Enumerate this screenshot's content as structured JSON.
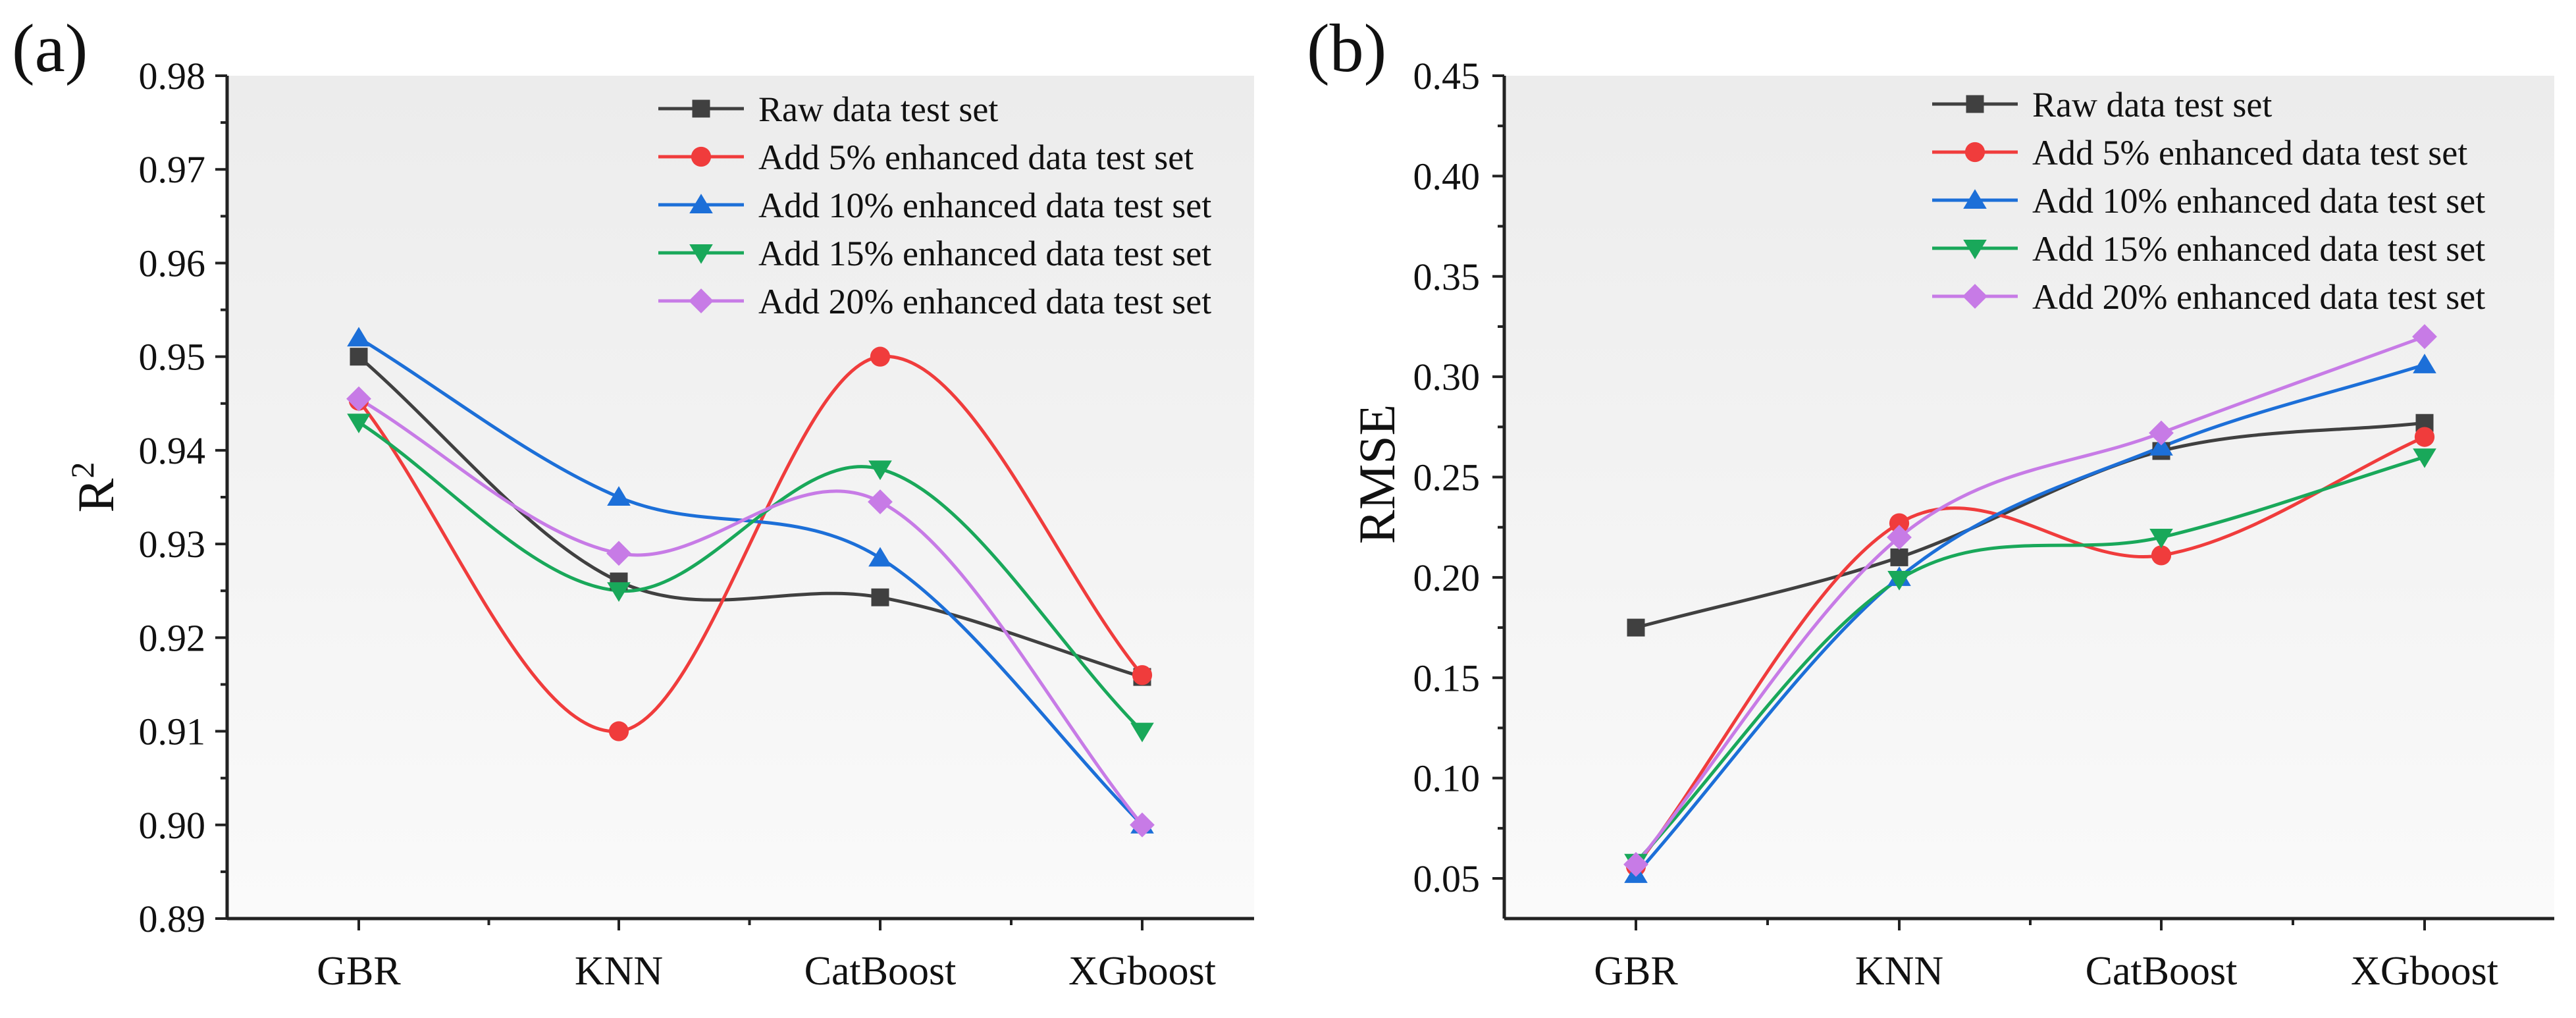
{
  "chart_data": [
    {
      "type": "line",
      "panel_label": "(a)",
      "title": "",
      "xlabel": "",
      "ylabel": "R",
      "ylabel_superscript": "2",
      "categories": [
        "GBR",
        "KNN",
        "CatBoost",
        "XGboost"
      ],
      "ylim": [
        0.89,
        0.98
      ],
      "yticks": [
        "0.89",
        "0.90",
        "0.91",
        "0.92",
        "0.93",
        "0.94",
        "0.95",
        "0.96",
        "0.97",
        "0.98"
      ],
      "legend_position": "top-right",
      "series": [
        {
          "name": "Raw data test set",
          "marker": "square",
          "color": "#404040",
          "values": [
            0.95,
            0.926,
            0.9243,
            0.9158
          ]
        },
        {
          "name": "Add 5% enhanced data test set",
          "marker": "circle",
          "color": "#f03c3c",
          "values": [
            0.9453,
            0.91,
            0.95,
            0.916
          ]
        },
        {
          "name": "Add 10% enhanced data test set",
          "marker": "triangle-up",
          "color": "#1c6fd8",
          "values": [
            0.952,
            0.935,
            0.9285,
            0.9
          ]
        },
        {
          "name": "Add 15% enhanced data test set",
          "marker": "triangle-down",
          "color": "#19a85a",
          "values": [
            0.943,
            0.925,
            0.938,
            0.91
          ]
        },
        {
          "name": "Add 20% enhanced data test set",
          "marker": "diamond",
          "color": "#c77be6",
          "values": [
            0.9455,
            0.929,
            0.9345,
            0.9
          ]
        }
      ]
    },
    {
      "type": "line",
      "panel_label": "(b)",
      "title": "",
      "xlabel": "",
      "ylabel": "RMSE",
      "categories": [
        "GBR",
        "KNN",
        "CatBoost",
        "XGboost"
      ],
      "ylim": [
        0.03,
        0.45
      ],
      "yticks": [
        "0.05",
        "0.10",
        "0.15",
        "0.20",
        "0.25",
        "0.30",
        "0.35",
        "0.40",
        "0.45"
      ],
      "legend_position": "top-right",
      "series": [
        {
          "name": "Raw data test set",
          "marker": "square",
          "color": "#404040",
          "values": [
            0.175,
            0.21,
            0.263,
            0.277
          ]
        },
        {
          "name": "Add 5% enhanced data test set",
          "marker": "circle",
          "color": "#f03c3c",
          "values": [
            0.056,
            0.227,
            0.211,
            0.27
          ]
        },
        {
          "name": "Add 10% enhanced data test set",
          "marker": "triangle-up",
          "color": "#1c6fd8",
          "values": [
            0.052,
            0.2,
            0.265,
            0.306
          ]
        },
        {
          "name": "Add 15% enhanced data test set",
          "marker": "triangle-down",
          "color": "#19a85a",
          "values": [
            0.058,
            0.199,
            0.22,
            0.26
          ]
        },
        {
          "name": "Add 20% enhanced data test set",
          "marker": "diamond",
          "color": "#c77be6",
          "values": [
            0.057,
            0.22,
            0.272,
            0.32
          ]
        }
      ]
    }
  ]
}
